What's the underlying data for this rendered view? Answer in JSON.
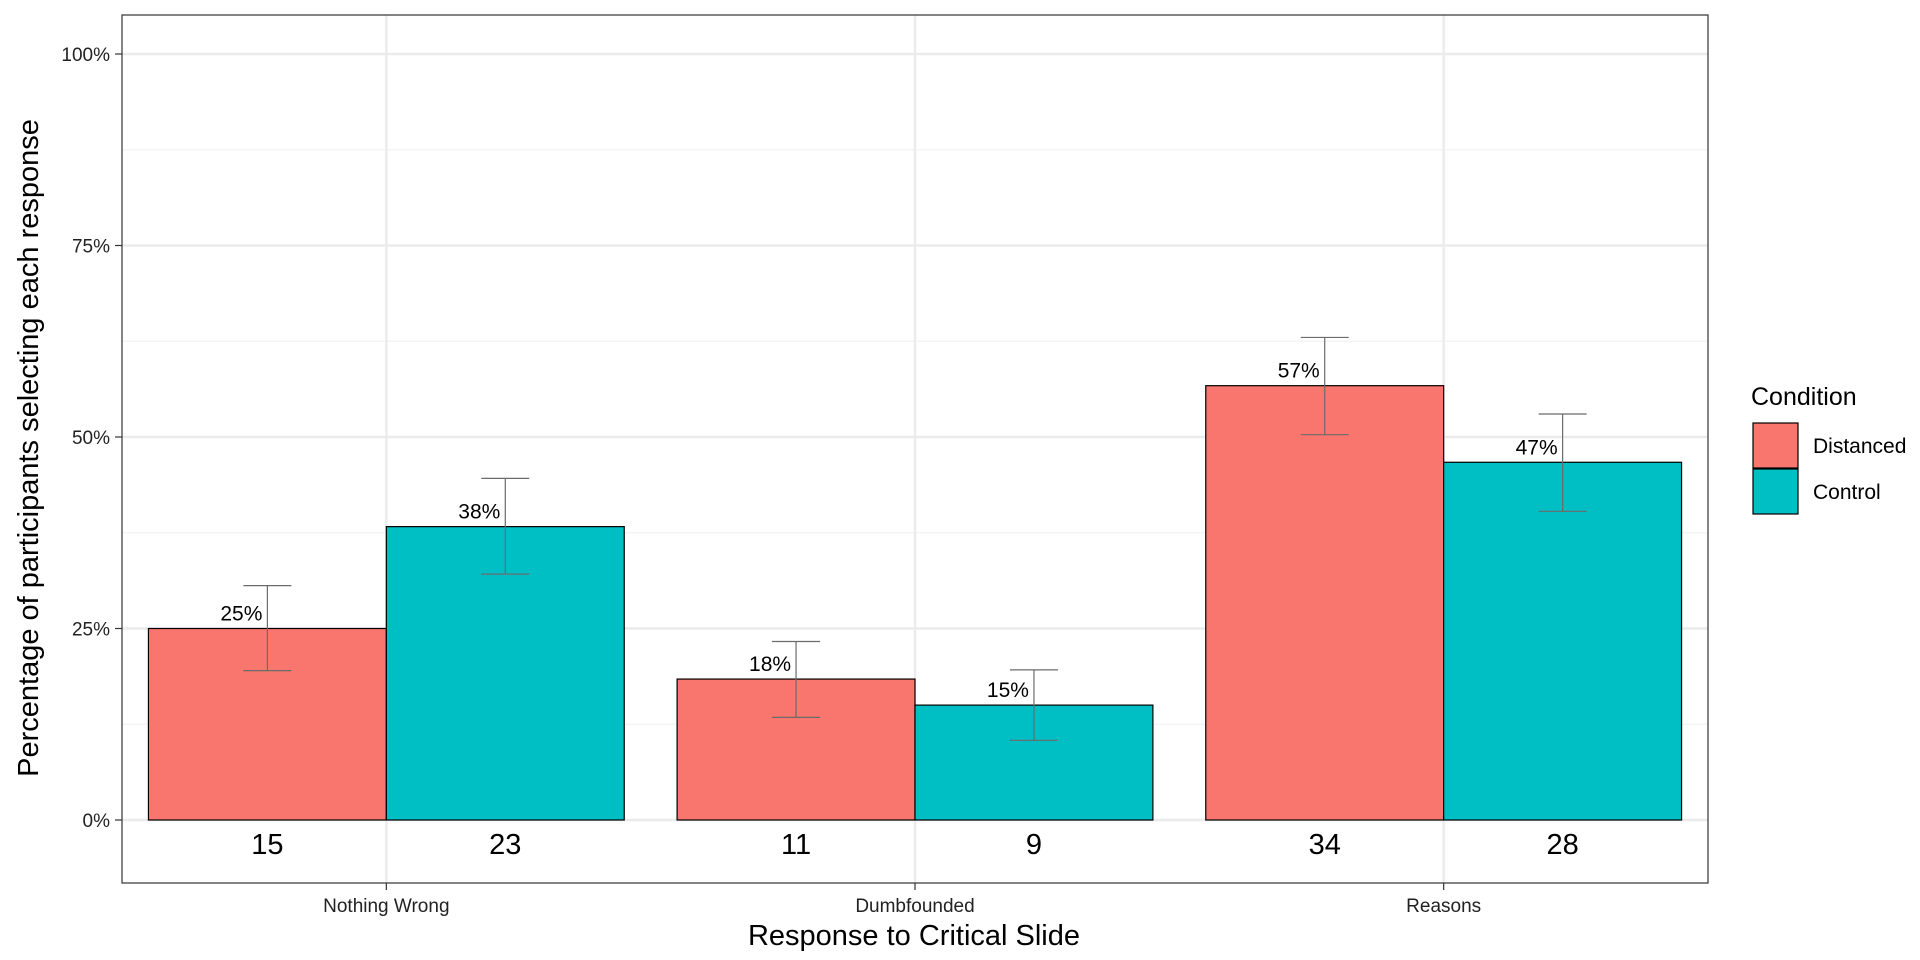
{
  "chart_data": {
    "type": "bar",
    "title": "",
    "xlabel": "Response to Critical Slide",
    "ylabel": "Percentage of participants selecting each response",
    "categories": [
      "Nothing Wrong",
      "Dumbfounded",
      "Reasons"
    ],
    "ylim": [
      0,
      1.05
    ],
    "y_ticks": [
      {
        "value": 0,
        "label": "0%"
      },
      {
        "value": 0.25,
        "label": "25%"
      },
      {
        "value": 0.5,
        "label": "50%"
      },
      {
        "value": 0.75,
        "label": "75%"
      },
      {
        "value": 1.0,
        "label": "100%"
      }
    ],
    "grid": true,
    "legend": {
      "title": "Condition",
      "position": "right"
    },
    "series": [
      {
        "name": "Distanced",
        "color": "#F8766D",
        "values": [
          0.25,
          0.184,
          0.567
        ],
        "value_labels": [
          "25%",
          "18%",
          "57%"
        ],
        "counts": [
          "15",
          "11",
          "34"
        ],
        "ci_lower": [
          0.195,
          0.134,
          0.503
        ],
        "ci_upper": [
          0.306,
          0.233,
          0.63
        ]
      },
      {
        "name": "Control",
        "color": "#00BFC4",
        "values": [
          0.383,
          0.15,
          0.467
        ],
        "value_labels": [
          "38%",
          "15%",
          "47%"
        ],
        "counts": [
          "23",
          "9",
          "28"
        ],
        "ci_lower": [
          0.321,
          0.104,
          0.403
        ],
        "ci_upper": [
          0.446,
          0.196,
          0.53
        ]
      }
    ]
  }
}
